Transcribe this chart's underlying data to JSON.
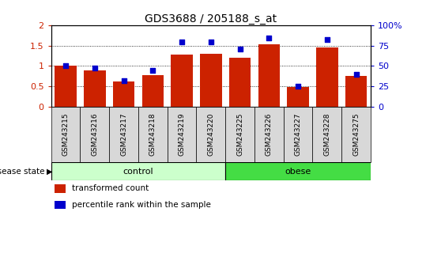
{
  "title": "GDS3688 / 205188_s_at",
  "samples": [
    "GSM243215",
    "GSM243216",
    "GSM243217",
    "GSM243218",
    "GSM243219",
    "GSM243220",
    "GSM243225",
    "GSM243226",
    "GSM243227",
    "GSM243228",
    "GSM243275"
  ],
  "transformed_count": [
    1.01,
    0.88,
    0.62,
    0.77,
    1.28,
    1.3,
    1.2,
    1.53,
    0.48,
    1.46,
    0.75
  ],
  "percentile_rank": [
    50,
    47,
    32,
    44,
    79,
    79,
    71,
    84,
    25,
    82,
    39
  ],
  "groups": [
    {
      "label": "control",
      "start": 0,
      "end": 6,
      "color": "#ccffcc"
    },
    {
      "label": "obese",
      "start": 6,
      "end": 11,
      "color": "#44dd44"
    }
  ],
  "bar_color": "#cc2200",
  "dot_color": "#0000cc",
  "left_ylim": [
    0,
    2
  ],
  "right_ylim": [
    0,
    100
  ],
  "left_yticks": [
    0,
    0.5,
    1.0,
    1.5,
    2.0
  ],
  "left_yticklabels": [
    "0",
    "0.5",
    "1",
    "1.5",
    "2"
  ],
  "right_yticks": [
    0,
    25,
    50,
    75,
    100
  ],
  "right_yticklabels": [
    "0",
    "25",
    "50",
    "75",
    "100%"
  ],
  "legend_items": [
    {
      "label": "transformed count",
      "color": "#cc2200"
    },
    {
      "label": "percentile rank within the sample",
      "color": "#0000cc"
    }
  ],
  "bar_width": 0.75,
  "sample_box_color": "#d8d8d8",
  "disease_state_label": "disease state"
}
